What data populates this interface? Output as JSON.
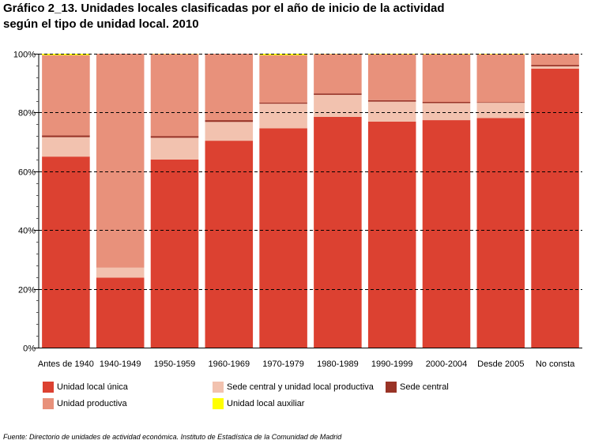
{
  "title": {
    "line1": "Gráfico 2_13. Unidades locales clasificadas por el año de inicio de la actividad",
    "line2": "según el tipo de unidad local. 2010"
  },
  "source": "Fuente: Directorio de unidades de actividad económica. Instituto de Estadística de la Comunidad de Madrid",
  "chart_data": {
    "type": "bar",
    "stacked": true,
    "percent_stacked": true,
    "categories": [
      "Antes de 1940",
      "1940-1949",
      "1950-1959",
      "1960-1969",
      "1970-1979",
      "1980-1989",
      "1990-1999",
      "2000-2004",
      "Desde 2005",
      "No consta"
    ],
    "ylim": [
      0,
      100
    ],
    "yticks": [
      0,
      20,
      40,
      60,
      80,
      100
    ],
    "ytick_labels": [
      "0%",
      "20%",
      "40%",
      "60%",
      "80%",
      "100%"
    ],
    "grid": "horizontal dashed",
    "legend_position": "bottom",
    "series": [
      {
        "name": "Unidad local única",
        "color": "#dc4131",
        "values": [
          65.0,
          23.8,
          64.0,
          70.4,
          74.6,
          78.5,
          76.9,
          77.4,
          78.1,
          94.9
        ]
      },
      {
        "name": "Sede central y unidad local productiva",
        "color": "#f2c2af",
        "values": [
          6.6,
          3.4,
          7.4,
          6.4,
          8.4,
          7.5,
          6.8,
          5.8,
          5.2,
          0.8
        ]
      },
      {
        "name": "Sede central",
        "color": "#993326",
        "values": [
          0.6,
          0.0,
          0.6,
          0.6,
          0.4,
          0.5,
          0.5,
          0.4,
          0.2,
          0.5
        ]
      },
      {
        "name": "Unidad productiva",
        "color": "#e8917b",
        "values": [
          27.3,
          72.8,
          27.9,
          22.6,
          16.1,
          13.4,
          15.6,
          16.2,
          16.3,
          3.8
        ]
      },
      {
        "name": "Unidad local auxiliar",
        "color": "#ffff00",
        "values": [
          0.5,
          0.0,
          0.1,
          0.0,
          0.5,
          0.1,
          0.2,
          0.2,
          0.2,
          0.0
        ]
      }
    ]
  }
}
